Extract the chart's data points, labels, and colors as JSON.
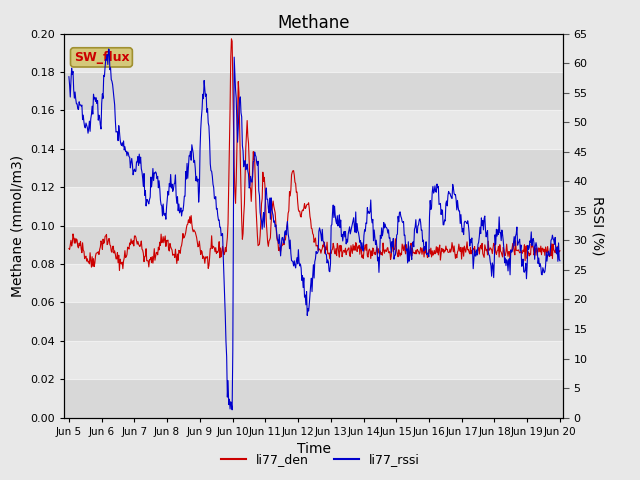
{
  "title": "Methane",
  "xlabel": "Time",
  "ylabel_left": "Methane (mmol/m3)",
  "ylabel_right": "RSSI (%)",
  "ylim_left": [
    0.0,
    0.2
  ],
  "ylim_right": [
    0,
    65
  ],
  "yticks_left": [
    0.0,
    0.02,
    0.04,
    0.06,
    0.08,
    0.1,
    0.12,
    0.14,
    0.16,
    0.18,
    0.2
  ],
  "yticks_right": [
    0,
    5,
    10,
    15,
    20,
    25,
    30,
    35,
    40,
    45,
    50,
    55,
    60,
    65
  ],
  "background_color": "#e8e8e8",
  "plot_bg_color": "#e0e0e0",
  "grid_color": "#f0f0f0",
  "line_color_den": "#cc0000",
  "line_color_rssi": "#0000cc",
  "label_den": "li77_den",
  "label_rssi": "li77_rssi",
  "annotation_text": "SW_flux",
  "annotation_bg": "#d4c87a",
  "annotation_border": "#a09030",
  "title_fontsize": 12,
  "axis_fontsize": 10,
  "tick_fontsize": 8,
  "legend_fontsize": 9,
  "linewidth": 0.8,
  "n_points": 720,
  "xmin": 4.85,
  "xmax": 20.1,
  "xtick_positions": [
    5,
    6,
    7,
    8,
    9,
    10,
    11,
    12,
    13,
    14,
    15,
    16,
    17,
    18,
    19,
    20
  ],
  "xtick_labels": [
    "Jun 5",
    "Jun 6",
    "Jun 7",
    "Jun 8",
    "Jun 9",
    "Jun 10",
    "Jun 11",
    "Jun 12",
    "Jun 13",
    "Jun 14",
    "Jun 15",
    "Jun 16",
    "Jun 17",
    "Jun 18",
    "Jun 19",
    "Jun 20"
  ]
}
